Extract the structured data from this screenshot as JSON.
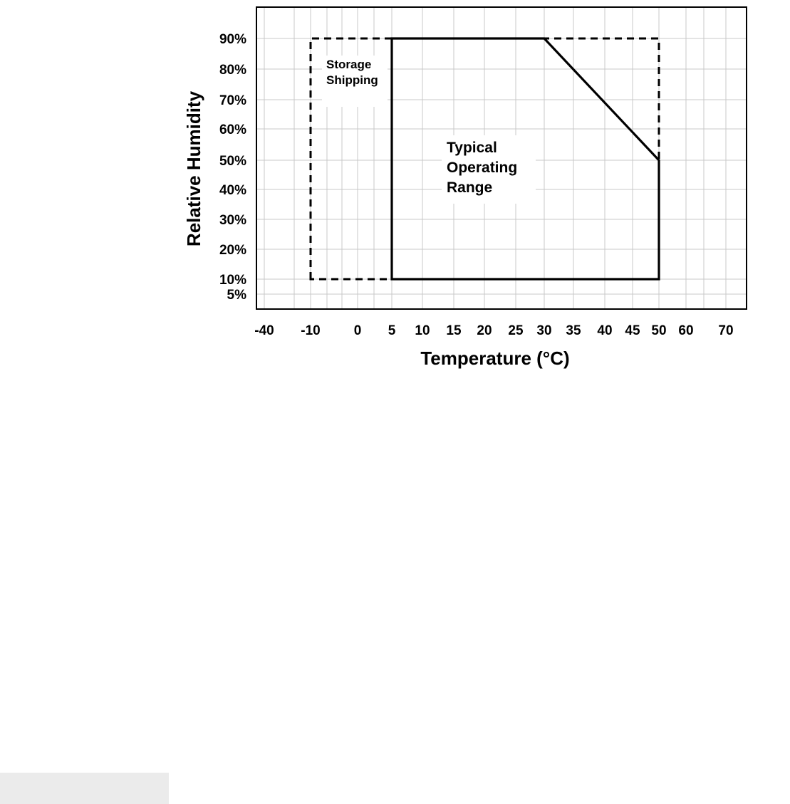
{
  "chart_data": {
    "type": "area",
    "xlabel": "Temperature (°C)",
    "ylabel": "Relative Humidity",
    "x_ticks": [
      "-40",
      "-10",
      "0",
      "5",
      "10",
      "15",
      "20",
      "25",
      "30",
      "35",
      "40",
      "45",
      "50",
      "60",
      "70"
    ],
    "y_ticks": [
      "90%",
      "80%",
      "70%",
      "60%",
      "50%",
      "40%",
      "30%",
      "20%",
      "10%",
      "5%"
    ],
    "grid": true,
    "regions": [
      {
        "name": "Storage Shipping",
        "label_lines": [
          "Storage",
          "Shipping"
        ],
        "line_style": "dashed",
        "points": [
          [
            -10,
            10
          ],
          [
            -10,
            90
          ],
          [
            50,
            90
          ],
          [
            50,
            10
          ]
        ]
      },
      {
        "name": "Typical Operating Range",
        "label_lines": [
          "Typical",
          "Operating",
          "Range"
        ],
        "line_style": "solid",
        "points": [
          [
            5,
            10
          ],
          [
            5,
            90
          ],
          [
            30,
            90
          ],
          [
            50,
            50
          ],
          [
            50,
            10
          ]
        ]
      }
    ]
  }
}
